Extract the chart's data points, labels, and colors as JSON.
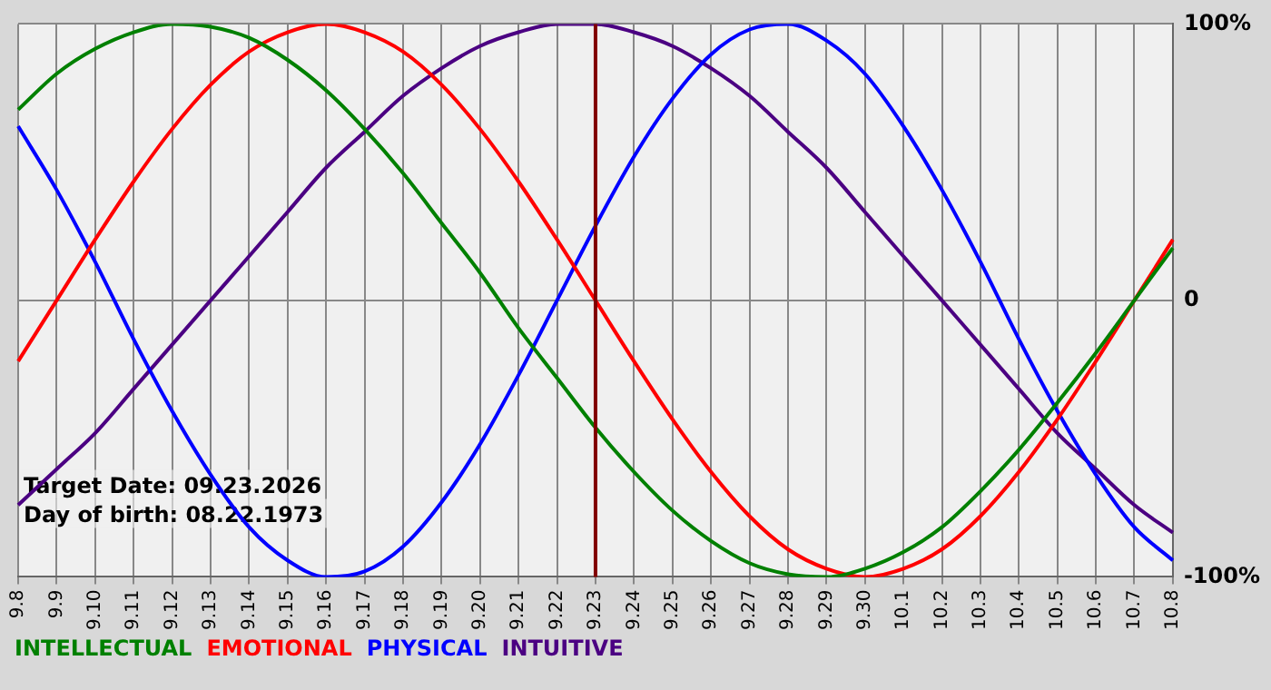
{
  "chart_data": {
    "type": "line",
    "categories": [
      "9.8",
      "9.9",
      "9.10",
      "9.11",
      "9.12",
      "9.13",
      "9.14",
      "9.15",
      "9.16",
      "9.17",
      "9.18",
      "9.19",
      "9.20",
      "9.21",
      "9.22",
      "9.23",
      "9.24",
      "9.25",
      "9.26",
      "9.27",
      "9.28",
      "9.29",
      "9.30",
      "10.1",
      "10.2",
      "10.3",
      "10.4",
      "10.5",
      "10.6",
      "10.7",
      "10.8"
    ],
    "series": [
      {
        "name": "INTELLECTUAL",
        "color": "#008000",
        "values": [
          69,
          82,
          91,
          97,
          100,
          99,
          95,
          87,
          76,
          62,
          46,
          28,
          10,
          -10,
          -28,
          -46,
          -62,
          -76,
          -87,
          -95,
          -99,
          -100,
          -97,
          -91,
          -82,
          -69,
          -54,
          -37,
          -19,
          0,
          19
        ]
      },
      {
        "name": "EMOTIONAL",
        "color": "#ff0000",
        "values": [
          -22,
          0,
          22,
          43,
          62,
          78,
          90,
          97,
          100,
          97,
          90,
          78,
          62,
          43,
          22,
          0,
          -22,
          -43,
          -62,
          -78,
          -90,
          -97,
          -100,
          -97,
          -90,
          -78,
          -62,
          -43,
          -22,
          0,
          22
        ]
      },
      {
        "name": "PHYSICAL",
        "color": "#0000ff",
        "values": [
          63,
          40,
          14,
          -14,
          -40,
          -63,
          -82,
          -94,
          -100,
          -98,
          -89,
          -73,
          -52,
          -27,
          0,
          27,
          52,
          73,
          89,
          98,
          100,
          94,
          82,
          63,
          40,
          14,
          -14,
          -40,
          -63,
          -82,
          -94
        ]
      },
      {
        "name": "INTUITIVE",
        "color": "#4b0082",
        "values": [
          -74,
          -61,
          -48,
          -32,
          -16,
          0,
          16,
          32,
          48,
          61,
          74,
          84,
          92,
          97,
          100,
          100,
          97,
          92,
          84,
          74,
          61,
          48,
          32,
          16,
          0,
          -16,
          -32,
          -48,
          -61,
          -74,
          -84
        ]
      }
    ],
    "ylim": [
      -100,
      100
    ],
    "yticks": [
      {
        "value": -100,
        "label": "-100%"
      },
      0,
      {
        "value": 100,
        "label": "100%"
      }
    ],
    "ref_lines": [
      {
        "axis": "x",
        "value": "9.23",
        "color": "#800000"
      }
    ],
    "annotations": [
      "Target Date: 09.23.2026",
      "Day of birth: 08.22.1973"
    ],
    "grid": true,
    "legend": "bottom",
    "marker": "none",
    "line_style": "solid"
  }
}
